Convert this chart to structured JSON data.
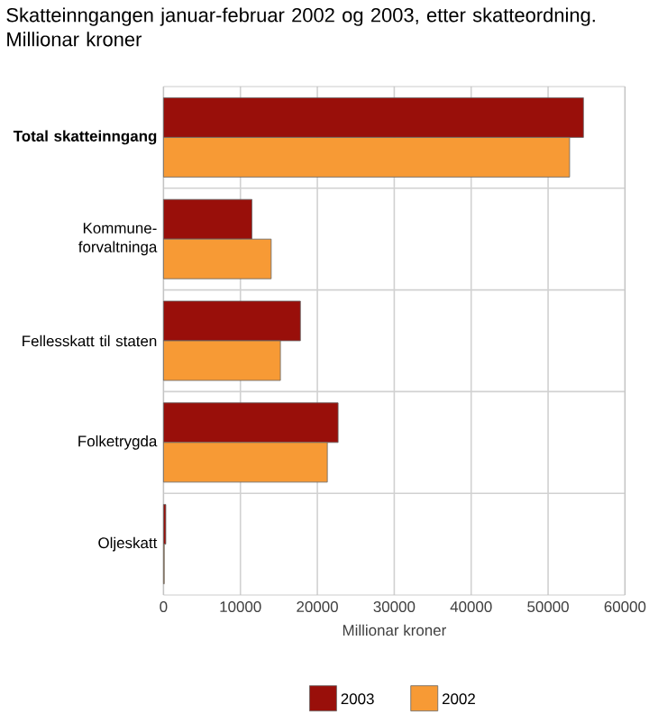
{
  "chart_data": {
    "type": "bar",
    "orientation": "horizontal",
    "title": "Skatteinngangen januar-februar 2002 og 2003, etter skatteordning. Millionar kroner",
    "xlabel": "Millionar kroner",
    "categories": [
      "Total skatteinngang",
      "Kommune-forvaltninga",
      "Fellesskatt til staten",
      "Folketrygda",
      "Oljeskatt"
    ],
    "series": [
      {
        "name": "2003",
        "color": "#990f0a",
        "values": [
          54600,
          11500,
          17800,
          22700,
          300
        ]
      },
      {
        "name": "2002",
        "color": "#f79a35",
        "values": [
          52800,
          14000,
          15200,
          21300,
          100
        ]
      }
    ],
    "xlim": [
      0,
      60000
    ],
    "xticks": [
      0,
      10000,
      20000,
      30000,
      40000,
      50000,
      60000
    ],
    "grid": true,
    "legend": "bottom"
  }
}
